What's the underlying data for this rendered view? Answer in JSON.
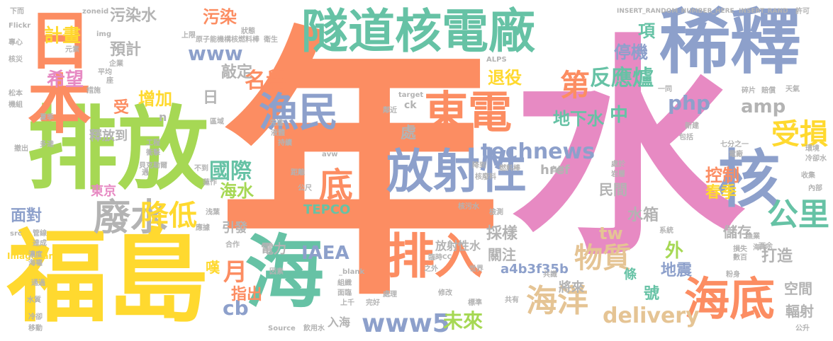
{
  "words": [
    {
      "text": "年",
      "color": "#fc8d62"
    },
    {
      "text": "水",
      "color": "#e78ac3"
    },
    {
      "text": "福島",
      "color": "#ffd92f"
    },
    {
      "text": "排放",
      "color": "#a6d854"
    },
    {
      "text": "隧道核電廠",
      "color": "#66c2a5"
    },
    {
      "text": "稀釋",
      "color": "#8da0cb"
    },
    {
      "text": "日本",
      "color": "#fc8d62"
    },
    {
      "text": "海",
      "color": "#66c2a5"
    },
    {
      "text": "放射性",
      "color": "#8da0cb"
    },
    {
      "text": "排入",
      "color": "#fc8d62"
    },
    {
      "text": "海底",
      "color": "#fc8d62"
    },
    {
      "text": "核",
      "color": "#8da0cb"
    },
    {
      "text": "東電",
      "color": "#fc8d62"
    },
    {
      "text": "漁民",
      "color": "#8da0cb"
    },
    {
      "text": "底",
      "color": "#fc8d62"
    },
    {
      "text": "廢水",
      "color": "#b3b3b3"
    },
    {
      "text": "降低",
      "color": "#ffd92f"
    },
    {
      "text": "海洋",
      "color": "#e5c494"
    },
    {
      "text": "公里",
      "color": "#66c2a5"
    },
    {
      "text": "受損",
      "color": "#ffd92f"
    },
    {
      "text": "物質",
      "color": "#e5c494"
    },
    {
      "text": "technews",
      "color": "#8da0cb"
    },
    {
      "text": "www5",
      "color": "#8da0cb"
    },
    {
      "text": "第",
      "color": "#fc8d62"
    },
    {
      "text": "計畫",
      "color": "#ffd92f"
    },
    {
      "text": "希望",
      "color": "#e78ac3"
    },
    {
      "text": "月",
      "color": "#fc8d62"
    },
    {
      "text": "國際",
      "color": "#66c2a5"
    },
    {
      "text": "www",
      "color": "#8da0cb"
    },
    {
      "text": "名譽",
      "color": "#fc8d62"
    },
    {
      "text": "污染水",
      "color": "#b3b3b3"
    },
    {
      "text": "污染",
      "color": "#fc8d62"
    },
    {
      "text": "反應爐",
      "color": "#66c2a5"
    },
    {
      "text": "退役",
      "color": "#ffd92f"
    },
    {
      "text": "增加",
      "color": "#ffd92f"
    },
    {
      "text": "預計",
      "color": "#b3b3b3"
    },
    {
      "text": "敲定",
      "color": "#b3b3b3"
    },
    {
      "text": "地下水",
      "color": "#66c2a5"
    },
    {
      "text": "停機",
      "color": "#8da0cb"
    },
    {
      "text": "項",
      "color": "#66c2a5"
    },
    {
      "text": "php",
      "color": "#8da0cb"
    },
    {
      "text": "amp",
      "color": "#b3b3b3"
    },
    {
      "text": "delivery",
      "color": "#e5c494"
    },
    {
      "text": "IAEA",
      "color": "#8da0cb"
    },
    {
      "text": "cb",
      "color": "#8da0cb"
    },
    {
      "text": "未來",
      "color": "#a6d854"
    },
    {
      "text": "打造",
      "color": "#b3b3b3"
    },
    {
      "text": "面對",
      "color": "#8da0cb"
    },
    {
      "text": "海水",
      "color": "#a6d854"
    },
    {
      "text": "控制",
      "color": "#fc8d62"
    },
    {
      "text": "春季",
      "color": "#ffd92f"
    },
    {
      "text": "水箱",
      "color": "#b3b3b3"
    },
    {
      "text": "tw",
      "color": "#e5c494"
    },
    {
      "text": "採樣",
      "color": "#b3b3b3"
    },
    {
      "text": "外",
      "color": "#a6d854"
    },
    {
      "text": "地震",
      "color": "#8da0cb"
    },
    {
      "text": "指出",
      "color": "#fc8d62"
    },
    {
      "text": "空間",
      "color": "#b3b3b3"
    },
    {
      "text": "輻射",
      "color": "#b3b3b3"
    },
    {
      "text": "儲存",
      "color": "#b3b3b3"
    },
    {
      "text": "關注",
      "color": "#b3b3b3"
    },
    {
      "text": "放射性水",
      "color": "#b3b3b3"
    },
    {
      "text": "a4b3f35b",
      "color": "#8da0cb"
    },
    {
      "text": "將來",
      "color": "#b3b3b3"
    },
    {
      "text": "入海",
      "color": "#b3b3b3"
    },
    {
      "text": "電力",
      "color": "#b3b3b3"
    },
    {
      "text": "引發",
      "color": "#b3b3b3"
    },
    {
      "text": "民間",
      "color": "#b3b3b3"
    },
    {
      "text": "東京",
      "color": "#e78ac3"
    },
    {
      "text": "釋放到",
      "color": "#b3b3b3"
    },
    {
      "text": "受",
      "color": "#fc8d62"
    },
    {
      "text": "處",
      "color": "#b3b3b3"
    },
    {
      "text": "中",
      "color": "#66c2a5"
    },
    {
      "text": "日",
      "color": "#b3b3b3"
    },
    {
      "text": "號",
      "color": "#66c2a5"
    },
    {
      "text": "條",
      "color": "#66c2a5"
    },
    {
      "text": "嘆",
      "color": "#ffd92f"
    },
    {
      "text": "href",
      "color": "#b3b3b3"
    },
    {
      "text": "TEPCO",
      "color": "#66c2a5"
    },
    {
      "text": "ck",
      "color": "#b3b3b3"
    },
    {
      "text": "n",
      "color": "#b3b3b3"
    },
    {
      "text": "下而",
      "color": "#b3b3b3"
    },
    {
      "text": "Flickr",
      "color": "#b3b3b3"
    },
    {
      "text": "zoneid",
      "color": "#b3b3b3"
    },
    {
      "text": "img",
      "color": "#b3b3b3"
    },
    {
      "text": "元素",
      "color": "#b3b3b3"
    },
    {
      "text": "上限",
      "color": "#b3b3b3"
    },
    {
      "text": "原子能機構",
      "color": "#b3b3b3"
    },
    {
      "text": "核燃料棒",
      "color": "#b3b3b3"
    },
    {
      "text": "衛生",
      "color": "#b3b3b3"
    },
    {
      "text": "狀態",
      "color": "#b3b3b3"
    },
    {
      "text": "INSERT_RANDOM_NUMBER_HERE",
      "color": "#b3b3b3"
    },
    {
      "text": "INSERT_RAND",
      "color": "#b3b3b3"
    },
    {
      "text": "許可",
      "color": "#b3b3b3"
    },
    {
      "text": "ALPS",
      "color": "#b3b3b3"
    },
    {
      "text": "target",
      "color": "#b3b3b3"
    },
    {
      "text": "Imagebank",
      "color": "#ffd92f"
    },
    {
      "text": "Source",
      "color": "#b3b3b3"
    },
    {
      "text": "_blank",
      "color": "#b3b3b3"
    },
    {
      "text": "avw",
      "color": "#b3b3b3"
    },
    {
      "text": "src",
      "color": "#b3b3b3"
    },
    {
      "text": "公尺",
      "color": "#b3b3b3"
    },
    {
      "text": "飲用水",
      "color": "#b3b3b3"
    },
    {
      "text": "專心",
      "color": "#b3b3b3"
    },
    {
      "text": "核災",
      "color": "#b3b3b3"
    },
    {
      "text": "松本",
      "color": "#b3b3b3"
    },
    {
      "text": "機組",
      "color": "#b3b3b3"
    },
    {
      "text": "夏季",
      "color": "#b3b3b3"
    },
    {
      "text": "多達",
      "color": "#b3b3b3"
    },
    {
      "text": "撤出",
      "color": "#b3b3b3"
    },
    {
      "text": "工程",
      "color": "#b3b3b3"
    },
    {
      "text": "衝擊",
      "color": "#b3b3b3"
    },
    {
      "text": "貝克勒爾",
      "color": "#b3b3b3"
    },
    {
      "text": "遇",
      "color": "#b3b3b3"
    },
    {
      "text": "不到",
      "color": "#b3b3b3"
    },
    {
      "text": "蓮作",
      "color": "#b3b3b3"
    },
    {
      "text": "浅葉",
      "color": "#b3b3b3"
    },
    {
      "text": "應據",
      "color": "#b3b3b3"
    },
    {
      "text": "合作",
      "color": "#b3b3b3"
    },
    {
      "text": "管線",
      "color": "#b3b3b3"
    },
    {
      "text": "達成",
      "color": "#b3b3b3"
    },
    {
      "text": "濃度",
      "color": "#b3b3b3"
    },
    {
      "text": "海嘯",
      "color": "#b3b3b3"
    },
    {
      "text": "通過",
      "color": "#b3b3b3"
    },
    {
      "text": "水質",
      "color": "#b3b3b3"
    },
    {
      "text": "冷卻",
      "color": "#b3b3b3"
    },
    {
      "text": "移動",
      "color": "#b3b3b3"
    },
    {
      "text": "因素",
      "color": "#b3b3b3"
    },
    {
      "text": "組織",
      "color": "#b3b3b3"
    },
    {
      "text": "面臨",
      "color": "#b3b3b3"
    },
    {
      "text": "上千",
      "color": "#b3b3b3"
    },
    {
      "text": "處理",
      "color": "#b3b3b3"
    },
    {
      "text": "核污水",
      "color": "#b3b3b3"
    },
    {
      "text": "檢測",
      "color": "#b3b3b3"
    },
    {
      "text": "自然",
      "color": "#b3b3b3"
    },
    {
      "text": "先進",
      "color": "#b3b3b3"
    },
    {
      "text": "液體",
      "color": "#b3b3b3"
    },
    {
      "text": "持續",
      "color": "#b3b3b3"
    },
    {
      "text": "區域",
      "color": "#b3b3b3"
    },
    {
      "text": "距離",
      "color": "#b3b3b3"
    },
    {
      "text": "平均",
      "color": "#b3b3b3"
    },
    {
      "text": "企業",
      "color": "#b3b3b3"
    },
    {
      "text": "座",
      "color": "#b3b3b3"
    },
    {
      "text": "措施",
      "color": "#b3b3b3"
    },
    {
      "text": "一同",
      "color": "#b3b3b3"
    },
    {
      "text": "碎片",
      "color": "#b3b3b3"
    },
    {
      "text": "賠償",
      "color": "#b3b3b3"
    },
    {
      "text": "天氣",
      "color": "#b3b3b3"
    },
    {
      "text": "新建",
      "color": "#b3b3b3"
    },
    {
      "text": "包括",
      "color": "#b3b3b3"
    },
    {
      "text": "七分之一",
      "color": "#b3b3b3"
    },
    {
      "text": "電廠",
      "color": "#b3b3b3"
    },
    {
      "text": "處於",
      "color": "#b3b3b3"
    },
    {
      "text": "岩層",
      "color": "#b3b3b3"
    },
    {
      "text": "環境",
      "color": "#b3b3b3"
    },
    {
      "text": "冷卻水",
      "color": "#b3b3b3"
    },
    {
      "text": "收集",
      "color": "#b3b3b3"
    },
    {
      "text": "內部",
      "color": "#b3b3b3"
    },
    {
      "text": "系統",
      "color": "#b3b3b3"
    },
    {
      "text": "漁業",
      "color": "#b3b3b3"
    },
    {
      "text": "海岸",
      "color": "#b3b3b3"
    },
    {
      "text": "百余",
      "color": "#b3b3b3"
    },
    {
      "text": "數百",
      "color": "#b3b3b3"
    },
    {
      "text": "損失",
      "color": "#b3b3b3"
    },
    {
      "text": "CC",
      "color": "#b3b3b3"
    },
    {
      "text": "世界",
      "color": "#b3b3b3"
    },
    {
      "text": "共識",
      "color": "#b3b3b3"
    },
    {
      "text": "粉身",
      "color": "#b3b3b3"
    },
    {
      "text": "公升",
      "color": "#b3b3b3"
    },
    {
      "text": "完好",
      "color": "#b3b3b3"
    },
    {
      "text": "修改",
      "color": "#b3b3b3"
    },
    {
      "text": "標準",
      "color": "#b3b3b3"
    },
    {
      "text": "共有",
      "color": "#b3b3b3"
    },
    {
      "text": "臨時",
      "color": "#b3b3b3"
    },
    {
      "text": "之外",
      "color": "#b3b3b3"
    },
    {
      "text": "鄰近",
      "color": "#b3b3b3"
    },
    {
      "text": "降到",
      "color": "#b3b3b3"
    },
    {
      "text": "燃料棒",
      "color": "#b3b3b3"
    },
    {
      "text": "核廢料",
      "color": "#b3b3b3"
    }
  ]
}
